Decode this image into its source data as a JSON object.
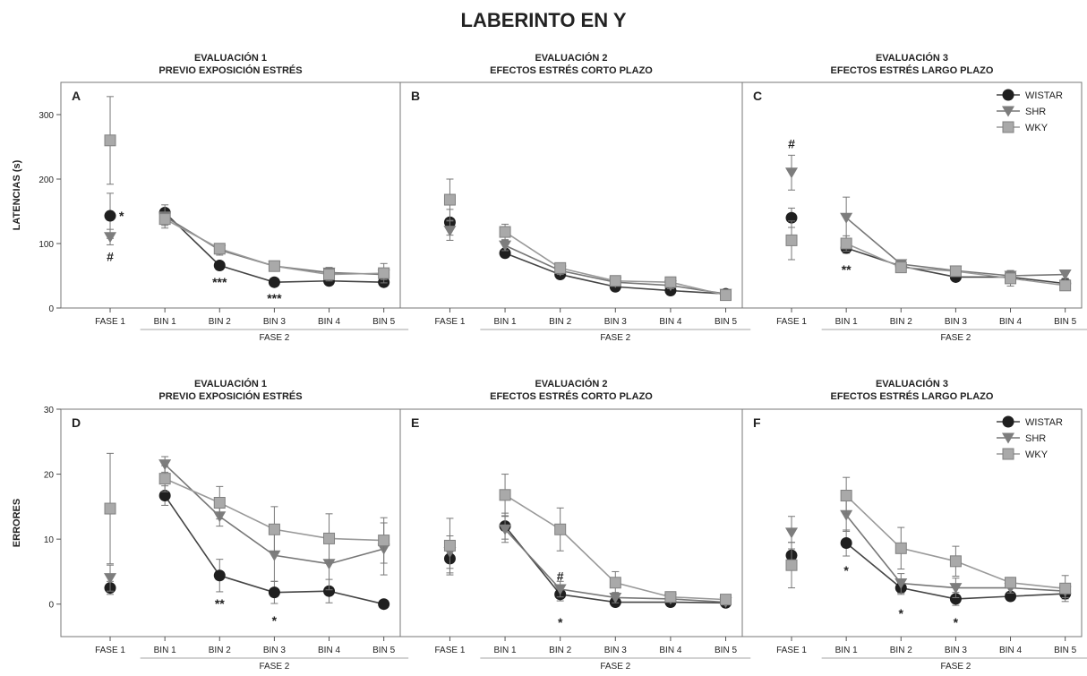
{
  "title": "LABERINTO EN Y",
  "legend": [
    "WISTAR",
    "SHR",
    "WKY"
  ],
  "colors": {
    "WISTAR": "#1f1f1f",
    "SHR": "#7d7d7d",
    "WKY": "#a9a9a9"
  },
  "x_categories": [
    "FASE 1",
    "BIN 1",
    "BIN 2",
    "BIN 3",
    "BIN 4",
    "BIN 5"
  ],
  "x_group_label": "FASE 2",
  "chart_data": [
    {
      "type": "line",
      "panel": "A",
      "title": [
        "EVALUACIÓN 1",
        "PREVIO EXPOSICIÓN ESTRÉS"
      ],
      "ylabel": "LATENCIAS (s)",
      "ylim": [
        0,
        350
      ],
      "yticks": [
        0,
        100,
        200,
        300
      ],
      "legend": false,
      "series": [
        {
          "name": "WISTAR",
          "values": [
            143,
            148,
            66,
            40,
            42,
            40
          ],
          "errors": [
            35,
            5,
            5,
            5,
            6,
            6
          ]
        },
        {
          "name": "SHR",
          "values": [
            110,
            142,
            90,
            65,
            55,
            52
          ],
          "errors": [
            12,
            18,
            8,
            6,
            8,
            8
          ]
        },
        {
          "name": "WKY",
          "values": [
            260,
            138,
            92,
            65,
            52,
            54
          ],
          "errors": [
            68,
            10,
            8,
            5,
            10,
            15
          ]
        }
      ],
      "annotations": [
        {
          "x": 0,
          "y": 143,
          "text": "*",
          "side": "right"
        },
        {
          "x": 0,
          "y": 80,
          "text": "#"
        },
        {
          "x": 2,
          "y": 40,
          "text": "***"
        },
        {
          "x": 3,
          "y": 15,
          "text": "***"
        }
      ]
    },
    {
      "type": "line",
      "panel": "B",
      "title": [
        "EVALUACIÓN 2",
        "EFECTOS ESTRÉS CORTO PLAZO"
      ],
      "ylabel": "",
      "ylim": [
        0,
        350
      ],
      "yticks": [],
      "legend": false,
      "series": [
        {
          "name": "WISTAR",
          "values": [
            133,
            85,
            52,
            33,
            27,
            22
          ],
          "errors": [
            20,
            6,
            5,
            4,
            5,
            3
          ]
        },
        {
          "name": "SHR",
          "values": [
            120,
            97,
            58,
            40,
            35,
            22
          ],
          "errors": [
            15,
            8,
            6,
            5,
            5,
            3
          ]
        },
        {
          "name": "WKY",
          "values": [
            168,
            118,
            62,
            42,
            40,
            20
          ],
          "errors": [
            32,
            12,
            6,
            6,
            5,
            3
          ]
        }
      ],
      "annotations": []
    },
    {
      "type": "line",
      "panel": "C",
      "title": [
        "EVALUACIÓN 3",
        "EFECTOS ESTRÉS LARGO PLAZO"
      ],
      "ylabel": "",
      "ylim": [
        0,
        350
      ],
      "yticks": [],
      "legend": true,
      "series": [
        {
          "name": "WISTAR",
          "values": [
            140,
            93,
            65,
            48,
            48,
            38
          ],
          "errors": [
            15,
            8,
            5,
            4,
            5,
            5
          ]
        },
        {
          "name": "SHR",
          "values": [
            210,
            140,
            68,
            58,
            50,
            52
          ],
          "errors": [
            27,
            32,
            6,
            5,
            8,
            6
          ]
        },
        {
          "name": "WKY",
          "values": [
            105,
            100,
            63,
            57,
            46,
            35
          ],
          "errors": [
            30,
            12,
            6,
            5,
            12,
            5
          ]
        }
      ],
      "annotations": [
        {
          "x": 0,
          "y": 255,
          "text": "#"
        },
        {
          "x": 1,
          "y": 60,
          "text": "**"
        }
      ]
    },
    {
      "type": "line",
      "panel": "D",
      "title": [
        "EVALUACIÓN 1",
        "PREVIO EXPOSICIÓN ESTRÉS"
      ],
      "ylabel": "ERRORES",
      "ylim": [
        -5,
        30
      ],
      "yticks": [
        0,
        10,
        20,
        30
      ],
      "legend": false,
      "series": [
        {
          "name": "WISTAR",
          "values": [
            2.5,
            16.7,
            4.4,
            1.8,
            2.0,
            0
          ],
          "errors": [
            1,
            1.5,
            2.5,
            1.7,
            1.8,
            0.3
          ]
        },
        {
          "name": "SHR",
          "values": [
            4,
            21.5,
            13.5,
            7.5,
            6.2,
            8.5
          ],
          "errors": [
            2,
            1.2,
            1.5,
            4,
            4,
            4
          ]
        },
        {
          "name": "WKY",
          "values": [
            14.7,
            19.3,
            15.6,
            11.5,
            10.1,
            9.8
          ],
          "errors": [
            8.5,
            2.0,
            2.5,
            3.5,
            3.8,
            3.5
          ]
        }
      ],
      "annotations": [
        {
          "x": 2,
          "y": 0.1,
          "text": "**"
        },
        {
          "x": 3,
          "y": -2.5,
          "text": "*"
        }
      ]
    },
    {
      "type": "line",
      "panel": "E",
      "title": [
        "EVALUACIÓN 2",
        "EFECTOS ESTRÉS CORTO PLAZO"
      ],
      "ylabel": "",
      "ylim": [
        -5,
        30
      ],
      "yticks": [],
      "legend": false,
      "series": [
        {
          "name": "WISTAR",
          "values": [
            7,
            12,
            1.5,
            0.3,
            0.3,
            0.2
          ],
          "errors": [
            2.5,
            2,
            1,
            0.5,
            0.5,
            0.3
          ]
        },
        {
          "name": "SHR",
          "values": [
            8,
            11.5,
            2.3,
            1.0,
            0.8,
            0.3
          ],
          "errors": [
            2.5,
            2,
            1.2,
            0.8,
            0.5,
            0.3
          ]
        },
        {
          "name": "WKY",
          "values": [
            9,
            16.8,
            11.5,
            3.3,
            1.1,
            0.7
          ],
          "errors": [
            4.2,
            3.2,
            3.3,
            1.7,
            0.6,
            0.5
          ]
        }
      ],
      "annotations": [
        {
          "x": 2,
          "y": 4.3,
          "text": "#"
        },
        {
          "x": 2,
          "y": -2.8,
          "text": "*"
        }
      ]
    },
    {
      "type": "line",
      "panel": "F",
      "title": [
        "EVALUACIÓN 3",
        "EFECTOS ESTRÉS LARGO PLAZO"
      ],
      "ylabel": "",
      "ylim": [
        -5,
        30
      ],
      "yticks": [],
      "legend": true,
      "series": [
        {
          "name": "WISTAR",
          "values": [
            7.5,
            9.4,
            2.5,
            0.8,
            1.2,
            1.6
          ],
          "errors": [
            2,
            2,
            1,
            1,
            0.6,
            0.8
          ]
        },
        {
          "name": "SHR",
          "values": [
            11.0,
            13.7,
            3.2,
            2.5,
            2.5,
            2.0
          ],
          "errors": [
            2.5,
            2.5,
            1.5,
            1.5,
            0.8,
            1.0
          ]
        },
        {
          "name": "WKY",
          "values": [
            6.0,
            16.7,
            8.6,
            6.6,
            3.3,
            2.4
          ],
          "errors": [
            3.5,
            2.8,
            3.2,
            2.3,
            0.8,
            2.0
          ]
        }
      ],
      "annotations": [
        {
          "x": 1,
          "y": 5.2,
          "text": "*"
        },
        {
          "x": 2,
          "y": -1.4,
          "text": "*"
        },
        {
          "x": 3,
          "y": -2.8,
          "text": "*"
        }
      ]
    }
  ]
}
